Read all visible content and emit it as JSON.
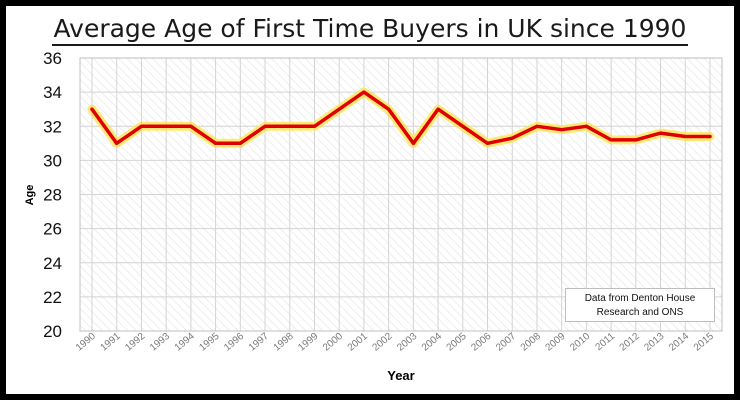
{
  "colors": {
    "line": "#e00000",
    "glow": "#ffe14a",
    "grid": "#d4d4d4",
    "hatch": "#eeeeee",
    "frame": "#000000"
  },
  "chart_data": {
    "type": "line",
    "title": "Average Age of First Time Buyers in UK since 1990",
    "xlabel": "Year",
    "ylabel": "Age",
    "ylim": [
      20,
      36
    ],
    "yticks": [
      20,
      22,
      24,
      26,
      28,
      30,
      32,
      34,
      36
    ],
    "grid": true,
    "legend": "none",
    "categories": [
      "1990",
      "1991",
      "1992",
      "1993",
      "1994",
      "1995",
      "1996",
      "1997",
      "1998",
      "1999",
      "2000",
      "2001",
      "2002",
      "2003",
      "2004",
      "2005",
      "2006",
      "2007",
      "2008",
      "2009",
      "2010",
      "2011",
      "2012",
      "2013",
      "2014",
      "2015"
    ],
    "values": [
      33,
      31,
      32,
      32,
      32,
      31,
      31,
      32,
      32,
      32,
      33,
      34,
      33,
      31,
      33,
      32,
      31,
      31.3,
      32,
      31.8,
      32,
      31.2,
      31.2,
      31.6,
      31.4,
      31.4
    ],
    "annotation": "Data from Denton House\nResearch and ONS"
  }
}
